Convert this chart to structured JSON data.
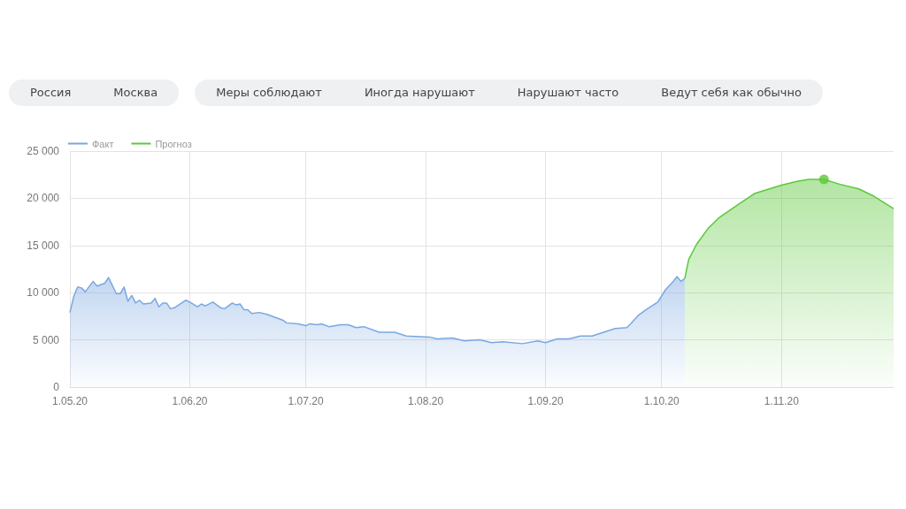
{
  "chart_data": {
    "type": "area",
    "annotations": [
      "Россия",
      "Москва",
      "Меры соблюдают",
      "Иногда нарушают",
      "Нарушают часто",
      "Ведут себя как обычно"
    ],
    "xlim": [
      "2020-05-01",
      "2020-11-30"
    ],
    "xticks": [
      {
        "value": "2020-05-01",
        "label": "1.05.20"
      },
      {
        "value": "2020-06-01",
        "label": "1.06.20"
      },
      {
        "value": "2020-07-01",
        "label": "1.07.20"
      },
      {
        "value": "2020-08-01",
        "label": "1.08.20"
      },
      {
        "value": "2020-09-01",
        "label": "1.09.20"
      },
      {
        "value": "2020-10-01",
        "label": "1.10.20"
      },
      {
        "value": "2020-11-01",
        "label": "1.11.20"
      }
    ],
    "ylim": [
      0,
      25000
    ],
    "yticks": [
      0,
      {
        "value": 5000,
        "label": "5 000"
      },
      {
        "value": 10000,
        "label": "10 000"
      },
      {
        "value": 15000,
        "label": "15 000"
      },
      {
        "value": 20000,
        "label": "20 000"
      },
      {
        "value": 25000,
        "label": "25 000"
      }
    ],
    "grid": true,
    "legend": "top left",
    "marker": "none",
    "series": [
      {
        "name": "Факт",
        "color": "#7aa7e0",
        "x": [
          "2020-05-01",
          "2020-05-02",
          "2020-05-03",
          "2020-05-04",
          "2020-05-05",
          "2020-05-07",
          "2020-05-08",
          "2020-05-10",
          "2020-05-11",
          "2020-05-13",
          "2020-05-14",
          "2020-05-15",
          "2020-05-16",
          "2020-05-17",
          "2020-05-18",
          "2020-05-19",
          "2020-05-20",
          "2020-05-22",
          "2020-05-23",
          "2020-05-24",
          "2020-05-25",
          "2020-05-26",
          "2020-05-27",
          "2020-05-28",
          "2020-05-31",
          "2020-06-01",
          "2020-06-03",
          "2020-06-04",
          "2020-06-05",
          "2020-06-07",
          "2020-06-09",
          "2020-06-10",
          "2020-06-12",
          "2020-06-13",
          "2020-06-14",
          "2020-06-15",
          "2020-06-16",
          "2020-06-17",
          "2020-06-19",
          "2020-06-21",
          "2020-06-23",
          "2020-06-25",
          "2020-06-26",
          "2020-06-29",
          "2020-07-01",
          "2020-07-02",
          "2020-07-04",
          "2020-07-05",
          "2020-07-07",
          "2020-07-10",
          "2020-07-12",
          "2020-07-14",
          "2020-07-16",
          "2020-07-20",
          "2020-07-24",
          "2020-07-27",
          "2020-08-02",
          "2020-08-04",
          "2020-08-08",
          "2020-08-11",
          "2020-08-15",
          "2020-08-18",
          "2020-08-21",
          "2020-08-26",
          "2020-08-30",
          "2020-09-01",
          "2020-09-04",
          "2020-09-07",
          "2020-09-10",
          "2020-09-13",
          "2020-09-16",
          "2020-09-19",
          "2020-09-22",
          "2020-09-23",
          "2020-09-25",
          "2020-09-27",
          "2020-09-30",
          "2020-10-02",
          "2020-10-04",
          "2020-10-05",
          "2020-10-06",
          "2020-10-07"
        ],
        "values": [
          7900,
          9600,
          10600,
          10500,
          10100,
          11200,
          10700,
          11000,
          11600,
          9900,
          9900,
          10600,
          9100,
          9700,
          8900,
          9200,
          8800,
          8900,
          9400,
          8500,
          8900,
          8900,
          8300,
          8400,
          9200,
          9000,
          8500,
          8800,
          8600,
          9000,
          8400,
          8300,
          8900,
          8700,
          8800,
          8200,
          8200,
          7800,
          7900,
          7700,
          7400,
          7100,
          6800,
          6700,
          6500,
          6700,
          6600,
          6700,
          6400,
          6600,
          6600,
          6300,
          6400,
          5800,
          5800,
          5400,
          5300,
          5100,
          5200,
          4900,
          5000,
          4700,
          4800,
          4600,
          4900,
          4700,
          5100,
          5100,
          5400,
          5400,
          5800,
          6200,
          6300,
          6700,
          7600,
          8200,
          9000,
          10300,
          11200,
          11700,
          11200,
          11500
        ]
      },
      {
        "name": "Прогноз",
        "color": "#5cc83a",
        "x": [
          "2020-10-07",
          "2020-10-08",
          "2020-10-10",
          "2020-10-13",
          "2020-10-16",
          "2020-10-21",
          "2020-10-25",
          "2020-11-01",
          "2020-11-05",
          "2020-11-08",
          "2020-11-12",
          "2020-11-16",
          "2020-11-21",
          "2020-11-25",
          "2020-11-30"
        ],
        "values": [
          11500,
          13500,
          15100,
          16800,
          18000,
          19400,
          20500,
          21400,
          21800,
          22000,
          22000,
          21500,
          21000,
          20200,
          18900
        ]
      },
      {
        "type": "scatter",
        "marker": "circle",
        "color": "#5cc83a",
        "x": [
          "2020-11-12"
        ],
        "values": [
          22000
        ]
      }
    ]
  }
}
